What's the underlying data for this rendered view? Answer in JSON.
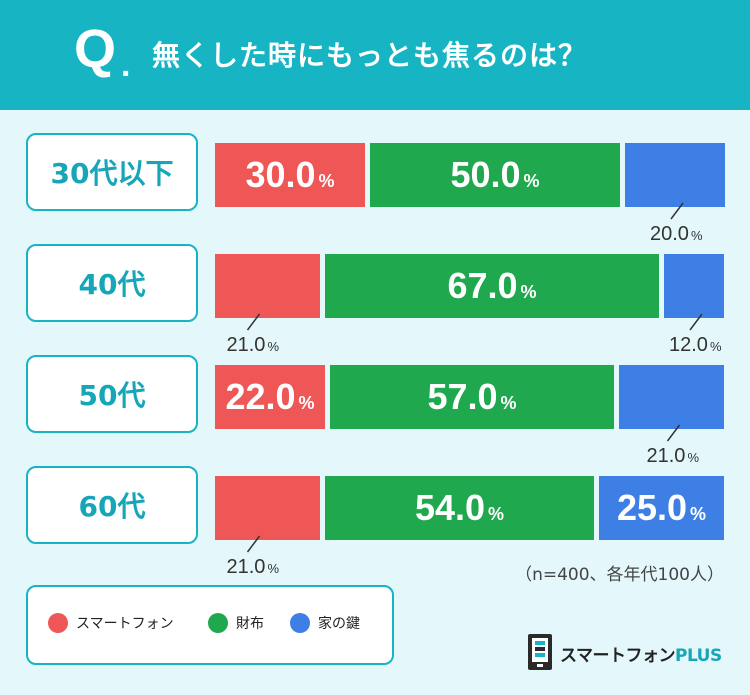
{
  "header": {
    "q": "Q",
    "dot": ".",
    "title": "無くした時にもっとも焦るのは？"
  },
  "colors": {
    "series": [
      "#ef5656",
      "#20a84e",
      "#3e7fe6"
    ],
    "accent": "#17b4c4",
    "background": "#e4f7fa"
  },
  "chart_data": {
    "type": "bar",
    "orientation": "horizontal-stacked-100",
    "title": "無くした時にもっとも焦るのは？",
    "categories": [
      "30代以下",
      "40代",
      "50代",
      "60代"
    ],
    "series": [
      {
        "name": "スマートフォン",
        "values": [
          30.0,
          21.0,
          22.0,
          21.0
        ]
      },
      {
        "name": "財布",
        "values": [
          50.0,
          67.0,
          57.0,
          54.0
        ]
      },
      {
        "name": "家の鍵",
        "values": [
          20.0,
          12.0,
          21.0,
          25.0
        ]
      }
    ],
    "value_unit": "%",
    "note": "（n=400、各年代100人）"
  },
  "legend": {
    "items": [
      "スマートフォン",
      "財布",
      "家の鍵"
    ]
  },
  "logo": {
    "text": "スマートフォン",
    "plus": "PLUS"
  }
}
